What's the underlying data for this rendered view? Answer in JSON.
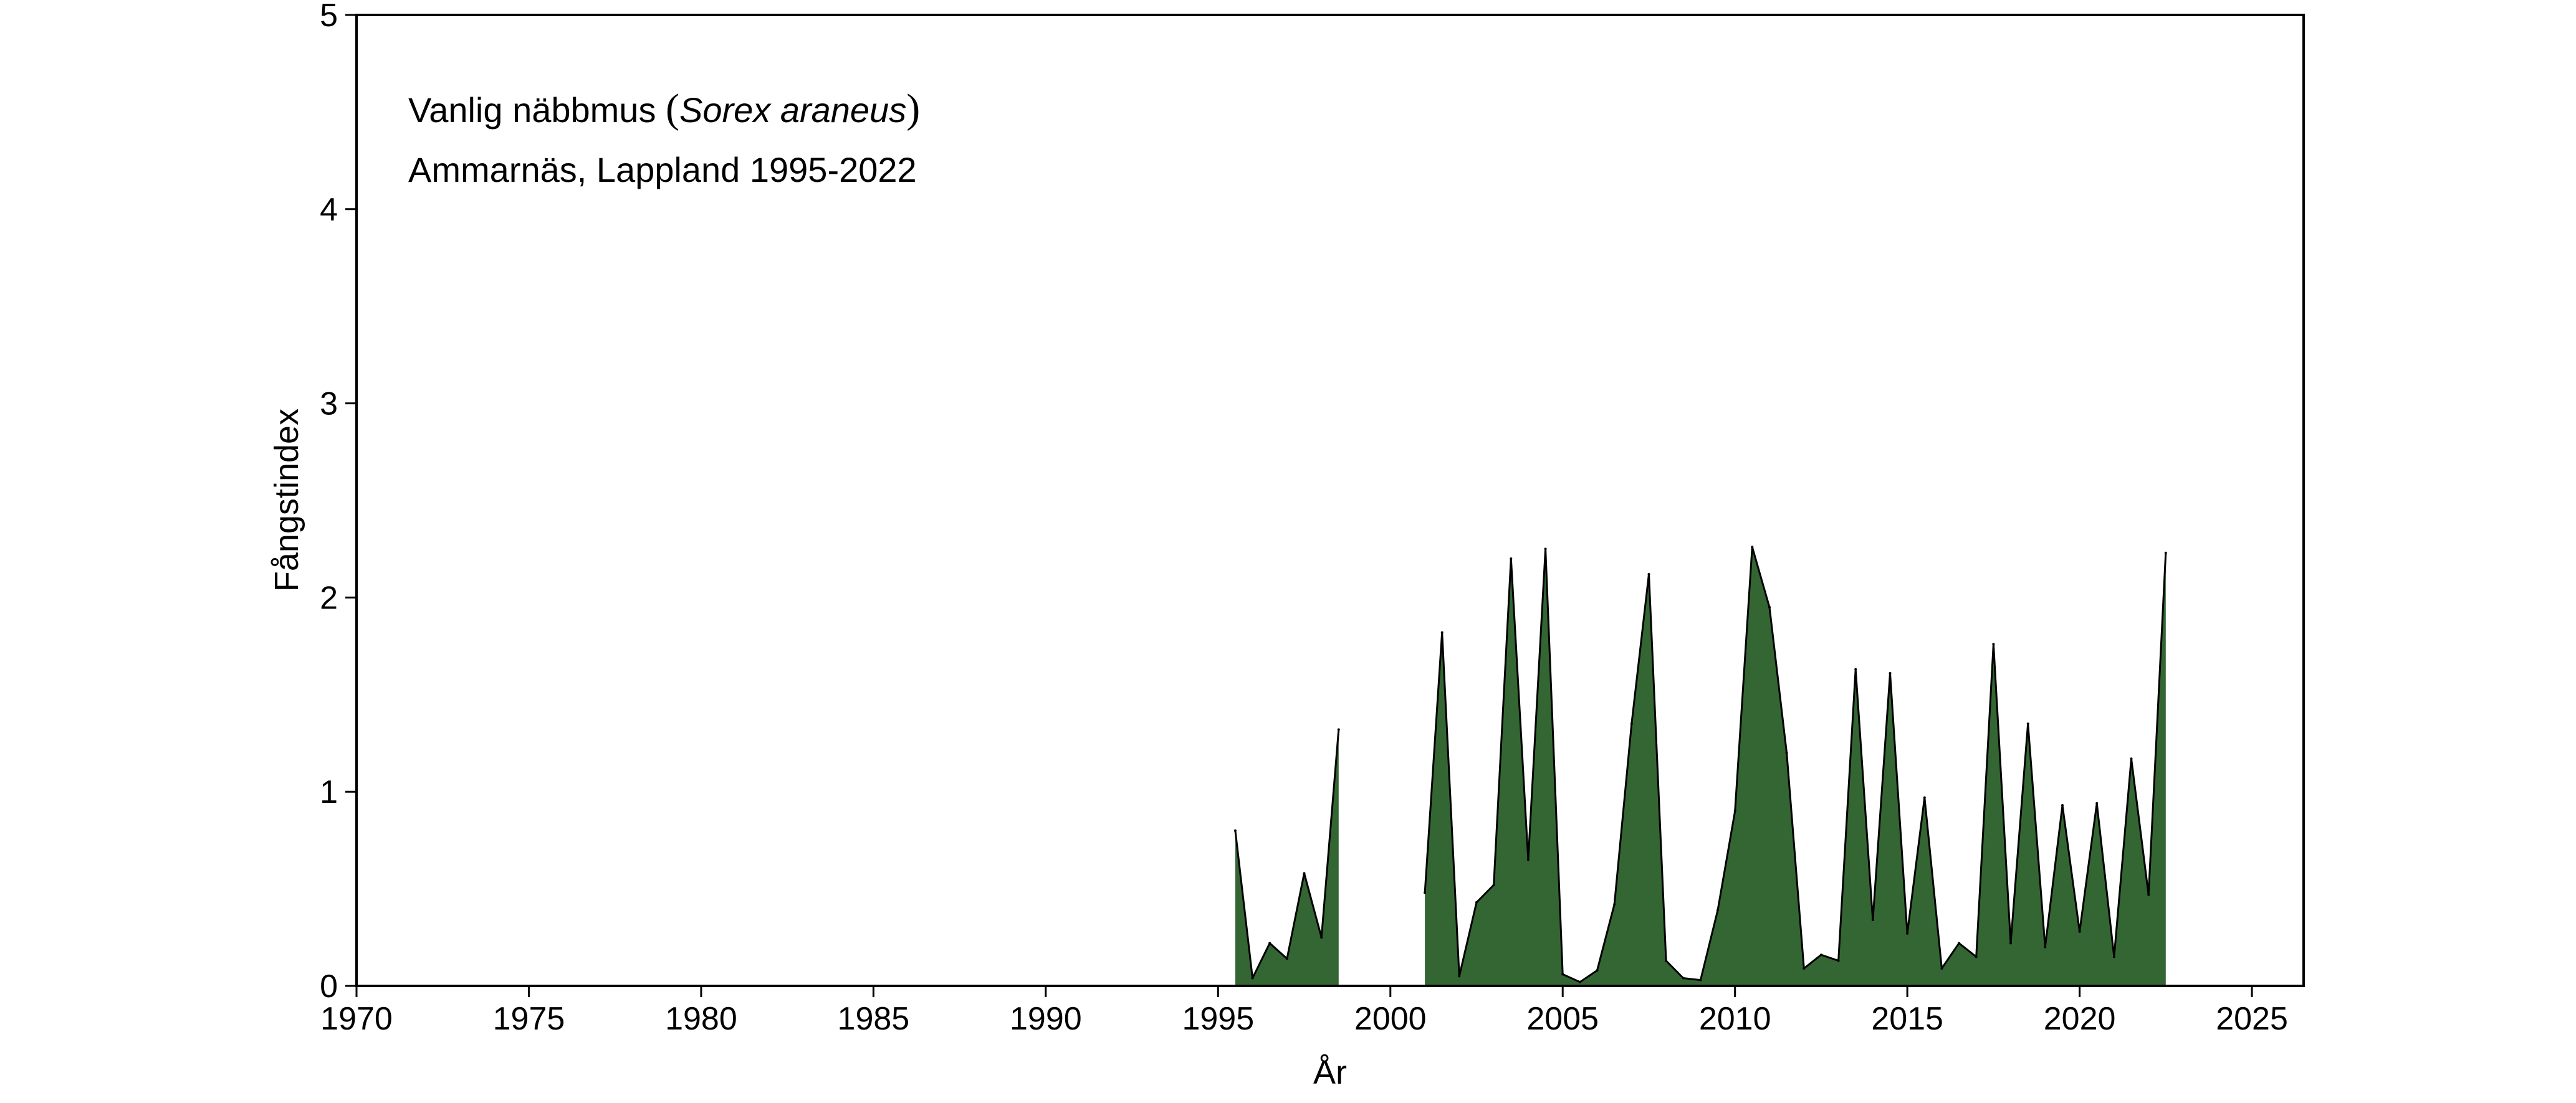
{
  "chart_data": {
    "type": "area",
    "title": "",
    "xlabel": "År",
    "ylabel": "Fångstindex",
    "xlim": [
      1970,
      2026.5
    ],
    "ylim": [
      0,
      5
    ],
    "x_ticks": [
      1970,
      1975,
      1980,
      1985,
      1990,
      1995,
      2000,
      2005,
      2010,
      2015,
      2020,
      2025
    ],
    "x_tick_labels": [
      "1970",
      "1975",
      "1980",
      "1985",
      "1990",
      "1995",
      "2000",
      "2005",
      "2010",
      "2015",
      "2020",
      "2025"
    ],
    "y_ticks": [
      0,
      1,
      2,
      3,
      4,
      5
    ],
    "y_tick_labels": [
      "0",
      "1",
      "2",
      "3",
      "4",
      "5"
    ],
    "grid": false,
    "fill_color": "#336633",
    "line_color": "#000000",
    "annotation": {
      "line1_prefix": "Vanlig näbbmus ",
      "paren_open": "(",
      "species": "Sorex araneus",
      "paren_close": ")",
      "line2": "Ammarnäs, Lappland 1995-2022"
    },
    "series": [
      {
        "segments": [
          {
            "x": [
              1995.5,
              1996.0,
              1996.5,
              1997.0,
              1997.5,
              1998.0,
              1998.5
            ],
            "y": [
              0.8,
              0.04,
              0.22,
              0.14,
              0.58,
              0.25,
              1.32
            ]
          },
          {
            "x": [
              2001.0,
              2001.5,
              2002.0,
              2002.5,
              2003.0,
              2003.5,
              2004.0,
              2004.5,
              2005.0,
              2005.5,
              2006.0,
              2006.5,
              2007.0,
              2007.5,
              2008.0,
              2008.5,
              2009.0,
              2009.5,
              2010.0,
              2010.5,
              2011.0,
              2011.5,
              2012.0,
              2012.5,
              2013.0,
              2013.5,
              2014.0,
              2014.5,
              2015.0,
              2015.5,
              2016.0,
              2016.5,
              2017.0,
              2017.5,
              2018.0,
              2018.5,
              2019.0,
              2019.5,
              2020.0,
              2020.5,
              2021.0,
              2021.5,
              2022.0,
              2022.5
            ],
            "y": [
              0.48,
              1.82,
              0.05,
              0.43,
              0.52,
              2.2,
              0.65,
              2.25,
              0.06,
              0.02,
              0.08,
              0.42,
              1.35,
              2.12,
              0.13,
              0.04,
              0.03,
              0.39,
              0.9,
              2.26,
              1.95,
              1.2,
              0.09,
              0.16,
              0.13,
              1.63,
              0.34,
              1.61,
              0.27,
              0.97,
              0.09,
              0.22,
              0.15,
              1.76,
              0.22,
              1.35,
              0.2,
              0.93,
              0.28,
              0.94,
              0.15,
              1.17,
              0.47,
              2.23
            ]
          }
        ]
      }
    ]
  }
}
